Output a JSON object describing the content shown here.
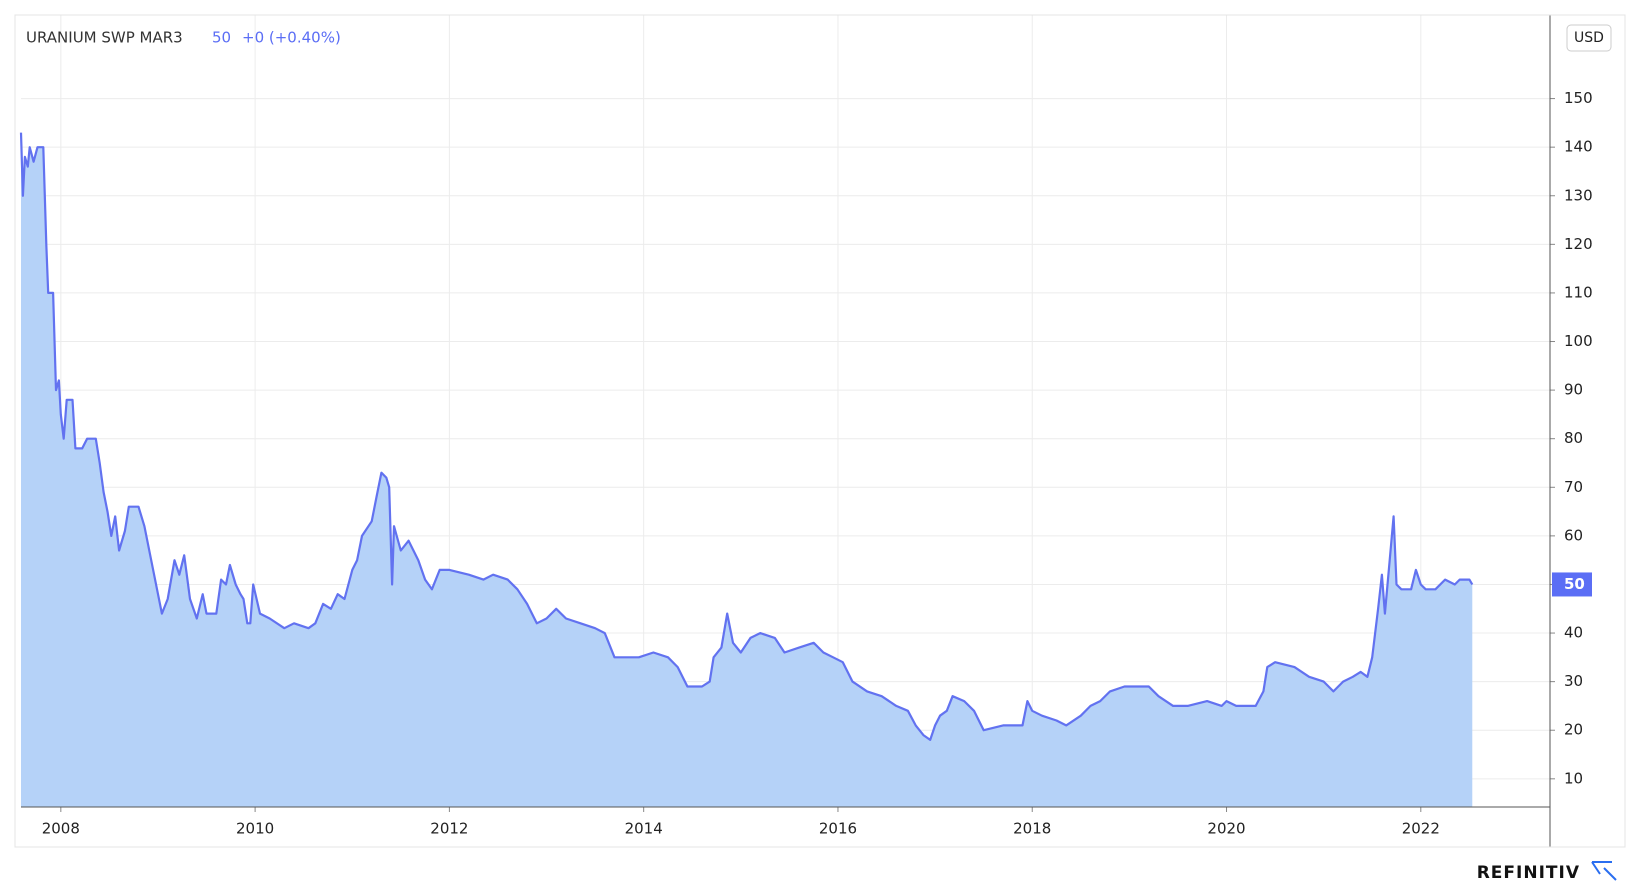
{
  "chart_data": {
    "type": "area",
    "title": "URANIUM SWP MAR3",
    "last_value": 50,
    "change": "+0 (+0.40%)",
    "currency": "USD",
    "source": "REFINITIV",
    "color": "#6272f0",
    "fill_color": "#b5d2f8",
    "grid": true,
    "xlim": [
      2007.59,
      2023.33
    ],
    "xticks": [
      2008,
      2010,
      2012,
      2014,
      2016,
      2018,
      2020,
      2022
    ],
    "ylim": [
      4.2,
      167.2
    ],
    "yticks": [
      10,
      20,
      30,
      40,
      50,
      60,
      70,
      80,
      90,
      100,
      110,
      120,
      130,
      140,
      150
    ],
    "x": [
      2007.59,
      2007.61,
      2007.63,
      2007.66,
      2007.68,
      2007.72,
      2007.76,
      2007.82,
      2007.85,
      2007.87,
      2007.92,
      2007.95,
      2007.98,
      2008.0,
      2008.03,
      2008.06,
      2008.12,
      2008.15,
      2008.22,
      2008.27,
      2008.36,
      2008.4,
      2008.44,
      2008.48,
      2008.52,
      2008.56,
      2008.6,
      2008.66,
      2008.7,
      2008.8,
      2008.86,
      2008.93,
      2009.0,
      2009.04,
      2009.1,
      2009.17,
      2009.22,
      2009.27,
      2009.33,
      2009.4,
      2009.46,
      2009.5,
      2009.6,
      2009.65,
      2009.7,
      2009.74,
      2009.8,
      2009.85,
      2009.88,
      2009.92,
      2009.95,
      2009.98,
      2010.05,
      2010.15,
      2010.3,
      2010.4,
      2010.55,
      2010.62,
      2010.7,
      2010.78,
      2010.85,
      2010.92,
      2011.0,
      2011.05,
      2011.1,
      2011.2,
      2011.25,
      2011.3,
      2011.35,
      2011.38,
      2011.41,
      2011.43,
      2011.5,
      2011.58,
      2011.68,
      2011.75,
      2011.82,
      2011.9,
      2012.0,
      2012.2,
      2012.35,
      2012.45,
      2012.6,
      2012.7,
      2012.8,
      2012.9,
      2013.0,
      2013.1,
      2013.2,
      2013.35,
      2013.5,
      2013.6,
      2013.7,
      2013.8,
      2013.95,
      2014.1,
      2014.25,
      2014.35,
      2014.45,
      2014.6,
      2014.68,
      2014.72,
      2014.8,
      2014.86,
      2014.92,
      2015.0,
      2015.1,
      2015.2,
      2015.35,
      2015.45,
      2015.6,
      2015.75,
      2015.85,
      2015.95,
      2016.05,
      2016.15,
      2016.3,
      2016.45,
      2016.6,
      2016.72,
      2016.8,
      2016.88,
      2016.95,
      2017.0,
      2017.05,
      2017.12,
      2017.18,
      2017.3,
      2017.4,
      2017.5,
      2017.7,
      2017.9,
      2017.95,
      2018.0,
      2018.1,
      2018.25,
      2018.35,
      2018.5,
      2018.6,
      2018.7,
      2018.8,
      2018.95,
      2019.2,
      2019.3,
      2019.45,
      2019.6,
      2019.8,
      2019.95,
      2020.0,
      2020.1,
      2020.3,
      2020.38,
      2020.42,
      2020.5,
      2020.7,
      2020.85,
      2021.0,
      2021.1,
      2021.2,
      2021.3,
      2021.38,
      2021.45,
      2021.5,
      2021.56,
      2021.6,
      2021.63,
      2021.68,
      2021.72,
      2021.75,
      2021.8,
      2021.9,
      2021.95,
      2022.0,
      2022.05,
      2022.15,
      2022.25,
      2022.35,
      2022.4,
      2022.5,
      2022.53
    ],
    "values": [
      143,
      130,
      138,
      136,
      140,
      137,
      140,
      140,
      120,
      110,
      110,
      90,
      92,
      85,
      80,
      88,
      88,
      78,
      78,
      80,
      80,
      75,
      69,
      65,
      60,
      64,
      57,
      61,
      66,
      66,
      62,
      55,
      48,
      44,
      47,
      55,
      52,
      56,
      47,
      43,
      48,
      44,
      44,
      51,
      50,
      54,
      50,
      48,
      47,
      42,
      42,
      50,
      44,
      43,
      41,
      42,
      41,
      42,
      46,
      45,
      48,
      47,
      53,
      55,
      60,
      63,
      68,
      73,
      72,
      70,
      50,
      62,
      57,
      59,
      55,
      51,
      49,
      53,
      53,
      52,
      51,
      52,
      51,
      49,
      46,
      42,
      43,
      45,
      43,
      42,
      41,
      40,
      35,
      35,
      35,
      36,
      35,
      33,
      29,
      29,
      30,
      35,
      37,
      44,
      38,
      36,
      39,
      40,
      39,
      36,
      37,
      38,
      36,
      35,
      34,
      30,
      28,
      27,
      25,
      24,
      21,
      19,
      18,
      21,
      23,
      24,
      27,
      26,
      24,
      20,
      21,
      21,
      26,
      24,
      23,
      22,
      21,
      23,
      25,
      26,
      28,
      29,
      29,
      27,
      25,
      25,
      26,
      25,
      26,
      25,
      25,
      28,
      33,
      34,
      33,
      31,
      30,
      28,
      30,
      31,
      32,
      31,
      35,
      45,
      52,
      44,
      55,
      64,
      50,
      49,
      49,
      53,
      50,
      49,
      49,
      51,
      50,
      51,
      51,
      50
    ]
  }
}
